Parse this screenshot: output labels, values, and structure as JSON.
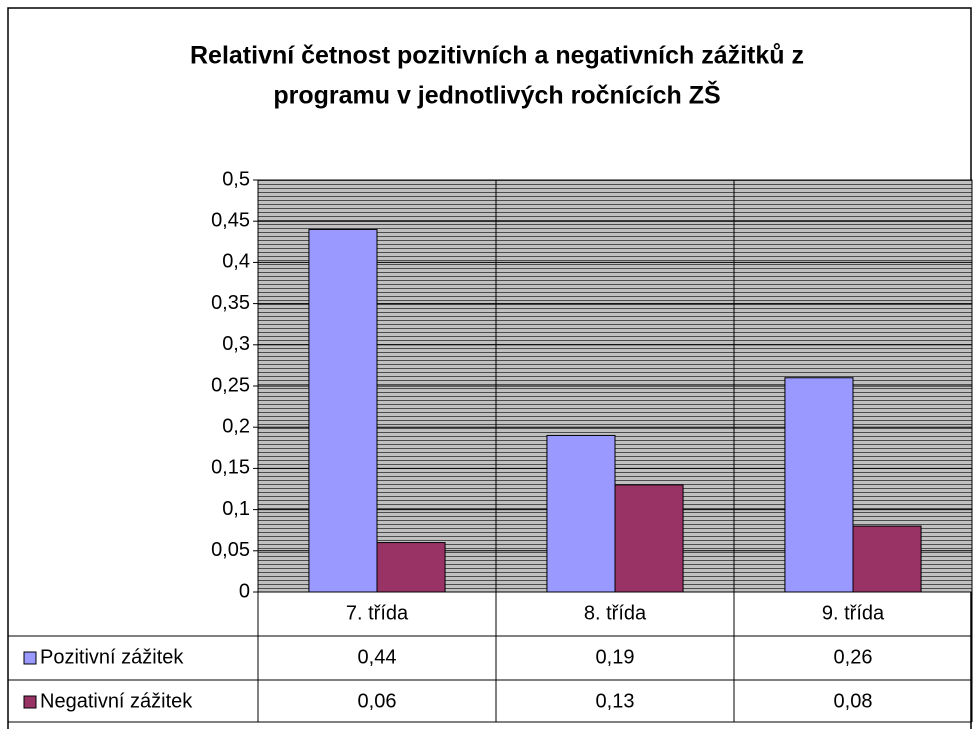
{
  "chart_data": {
    "type": "bar",
    "title": [
      "Relativní četnost pozitivních a negativních zážitků z",
      "programu v jednotlivých ročnících ZŠ"
    ],
    "categories": [
      "7. třída",
      "8. třída",
      "9. třída"
    ],
    "series": [
      {
        "name": "Pozitivní zážitek",
        "color": "#9999ff",
        "values": [
          0.44,
          0.19,
          0.26
        ],
        "value_labels": [
          "0,44",
          "0,19",
          "0,26"
        ]
      },
      {
        "name": "Negativní zážitek",
        "color": "#993366",
        "values": [
          0.06,
          0.13,
          0.08
        ],
        "value_labels": [
          "0,06",
          "0,13",
          "0,08"
        ]
      }
    ],
    "ylim": [
      0,
      0.5
    ],
    "yticks": [
      0,
      {
        "value": 0.05,
        "label": "0,05"
      },
      {
        "value": 0.1,
        "label": "0,1"
      },
      {
        "value": 0.15,
        "label": "0,15"
      },
      {
        "value": 0.2,
        "label": "0,2"
      },
      {
        "value": 0.25,
        "label": "0,25"
      },
      {
        "value": 0.3,
        "label": "0,3"
      },
      {
        "value": 0.35,
        "label": "0,35"
      },
      {
        "value": 0.4,
        "label": "0,4"
      },
      {
        "value": 0.45,
        "label": "0,45"
      },
      {
        "value": 0.5,
        "label": "0,5"
      }
    ],
    "grid": true
  }
}
